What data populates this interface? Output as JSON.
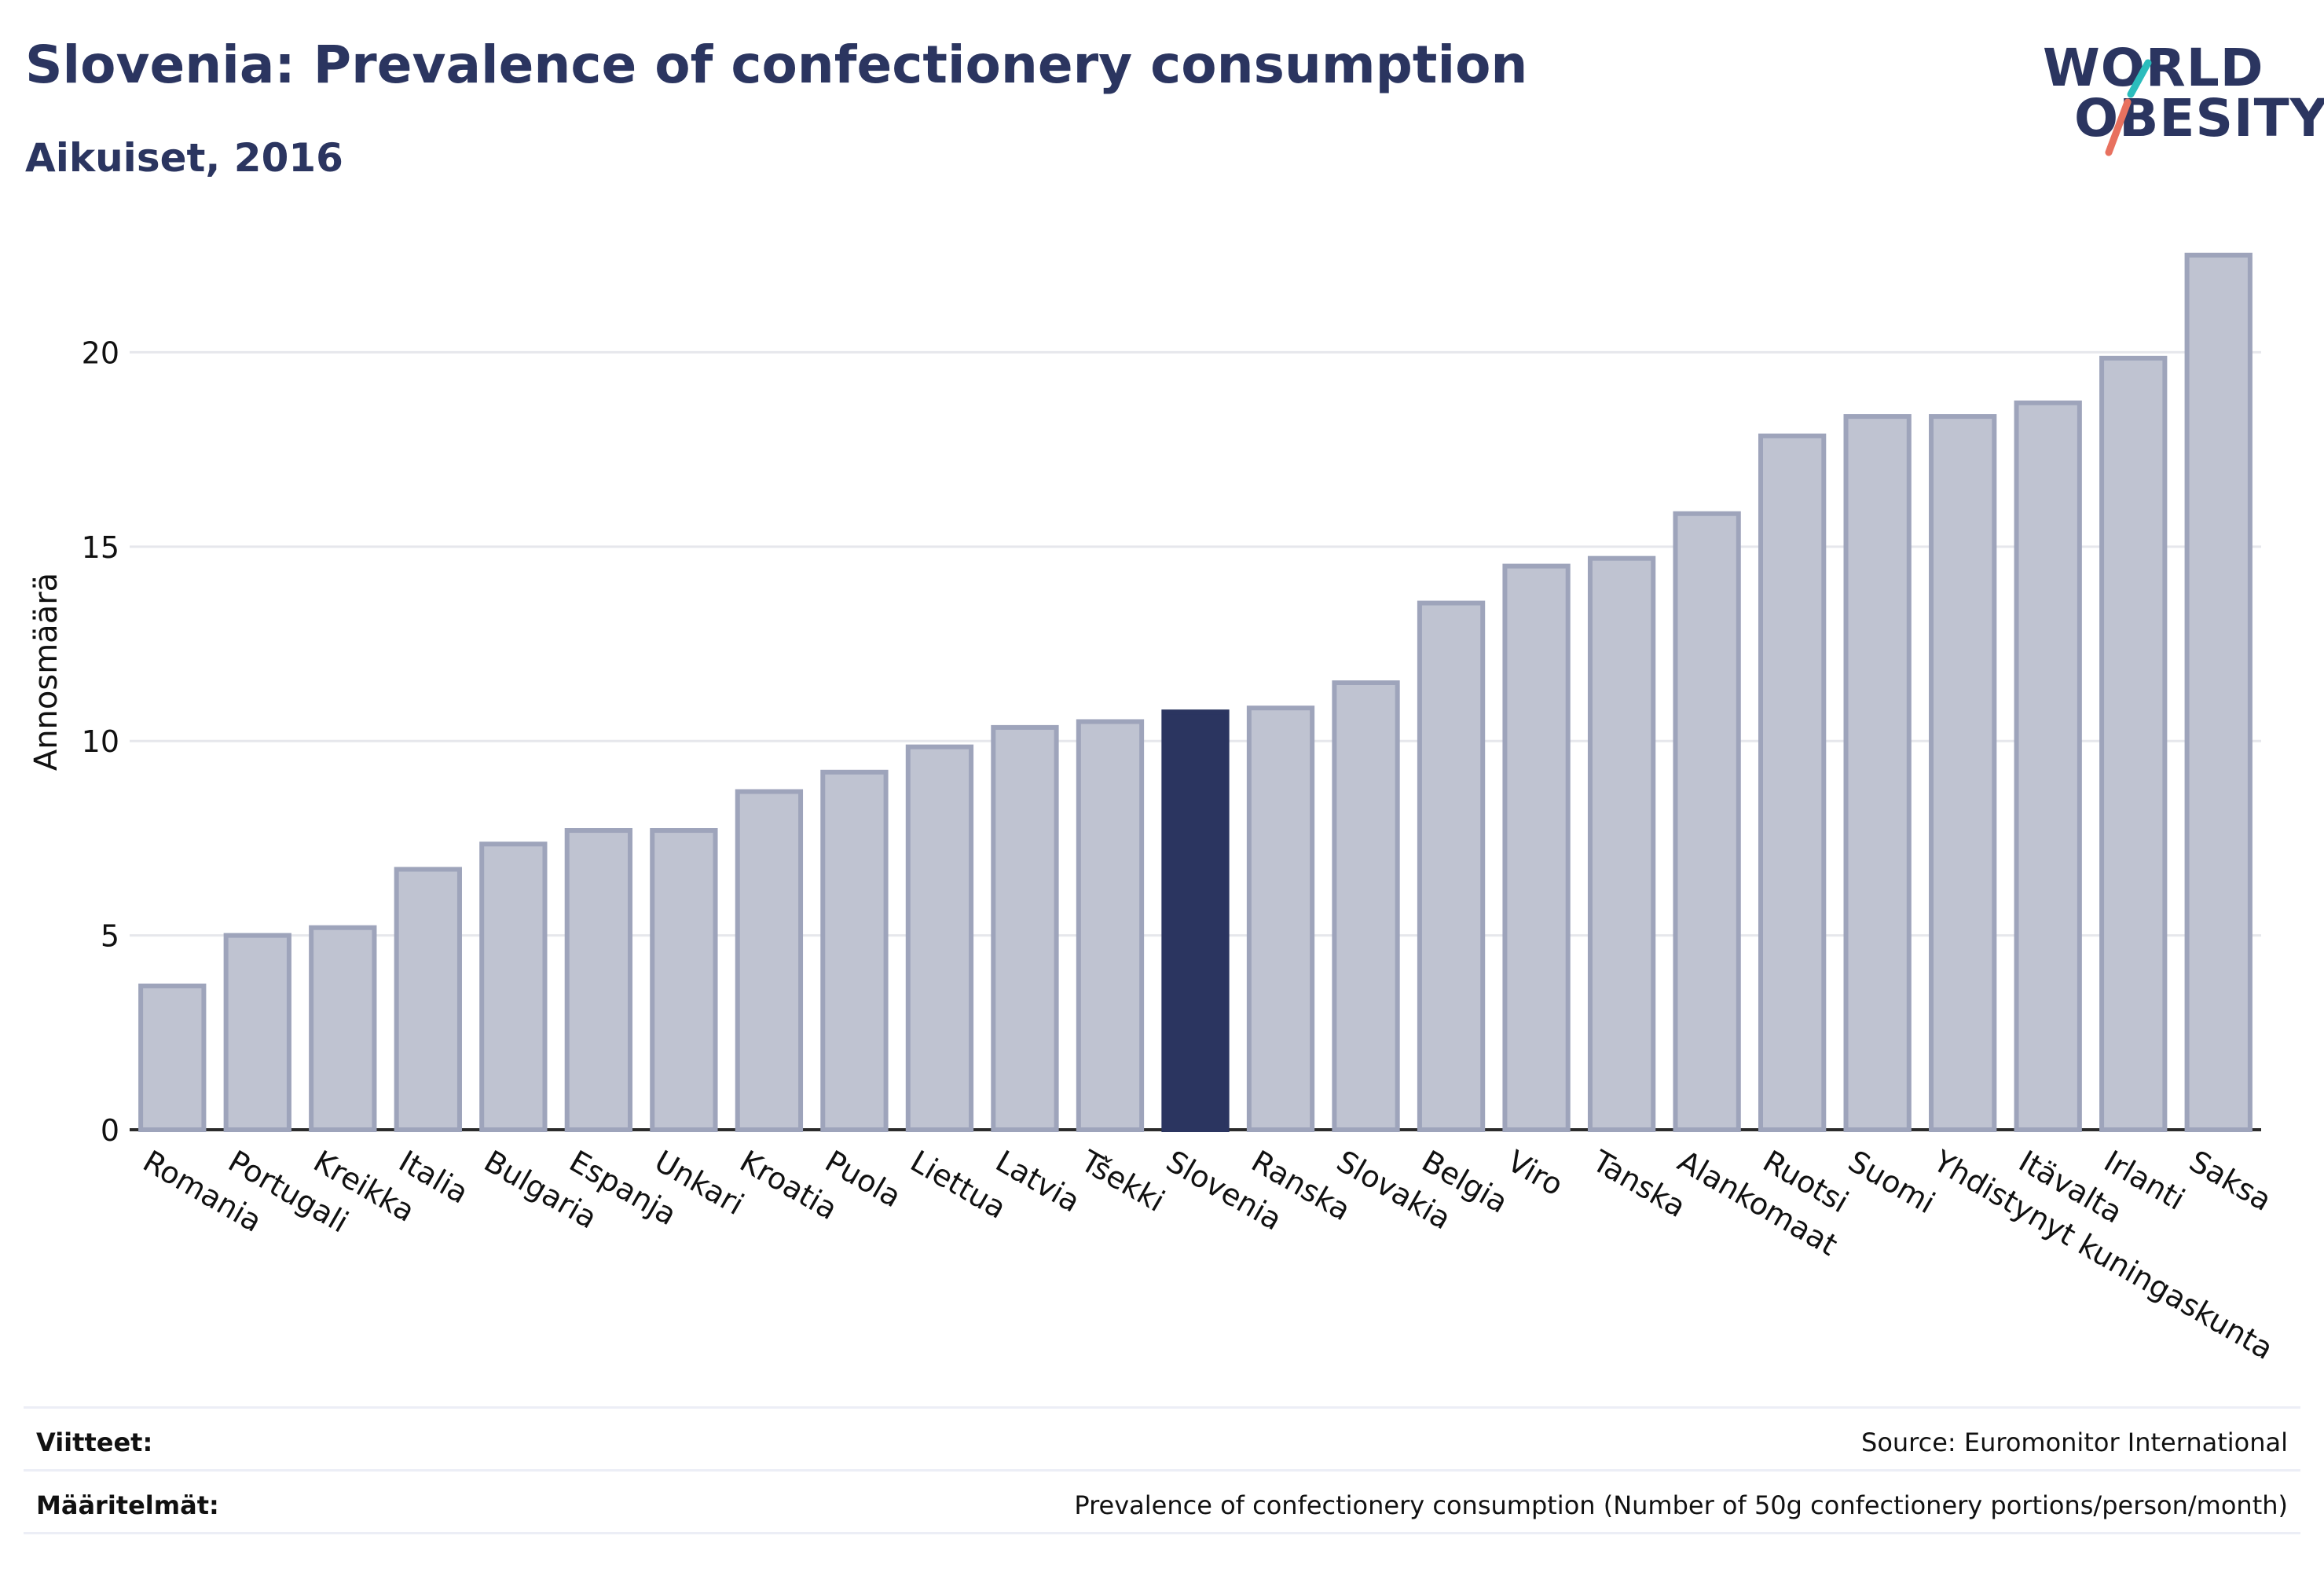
{
  "header": {
    "title": "Slovenia: Prevalence of confectionery consumption",
    "subtitle": "Aikuiset, 2016"
  },
  "logo": {
    "line1": "WORLD",
    "line2": "OBESITY",
    "slash_colors": [
      "#2bbcbc",
      "#e8715f"
    ]
  },
  "chart_data": {
    "type": "bar",
    "ylabel": "Annosmäärä",
    "ylim": [
      0,
      23
    ],
    "yticks": [
      0,
      5,
      10,
      15,
      20
    ],
    "grid": true,
    "highlight": "Slovenia",
    "colors": {
      "bar": "#bfc3d1",
      "bar_border": "#9ea4bb",
      "highlight": "#2b3560"
    },
    "categories": [
      "Romania",
      "Portugali",
      "Kreikka",
      "Italia",
      "Bulgaria",
      "Espanja",
      "Unkari",
      "Kroatia",
      "Puola",
      "Liettua",
      "Latvia",
      "Tšekki",
      "Slovenia",
      "Ranska",
      "Slovakia",
      "Belgia",
      "Viro",
      "Tanska",
      "Alankomaat",
      "Ruotsi",
      "Suomi",
      "Yhdistynyt kuningaskunta",
      "Itävalta",
      "Irlanti",
      "Saksa"
    ],
    "values": [
      3.7,
      5.0,
      5.2,
      6.7,
      7.35,
      7.7,
      7.7,
      8.7,
      9.2,
      9.85,
      10.35,
      10.5,
      10.75,
      10.85,
      11.5,
      13.55,
      14.5,
      14.7,
      15.85,
      17.85,
      18.35,
      18.35,
      18.7,
      19.85,
      22.5
    ]
  },
  "footer": {
    "references_label": "Viitteet:",
    "references_value": "Source: Euromonitor International",
    "definitions_label": "Määritelmät:",
    "definitions_value": "Prevalence of confectionery consumption (Number of 50g confectionery portions/person/month)"
  }
}
